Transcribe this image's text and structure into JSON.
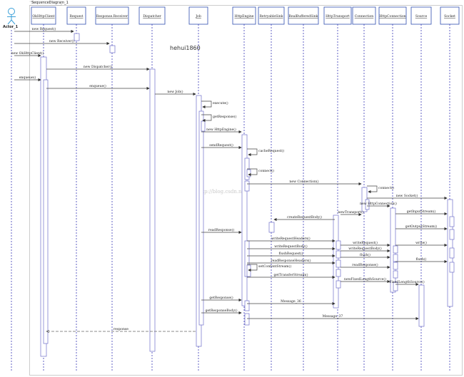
{
  "diagram": {
    "frame_title": "SequenceDiagram_1",
    "watermark": "hehui1860",
    "watermark2": "http://blog.csdn.net",
    "actor": "Actor_1",
    "participants": [
      {
        "id": "okhttpclient",
        "label": "OkHttpClient"
      },
      {
        "id": "request",
        "label": "Request"
      },
      {
        "id": "response_receiver",
        "label": "Response.Receiver"
      },
      {
        "id": "dispatcher",
        "label": "Dispatcher"
      },
      {
        "id": "job",
        "label": "Job"
      },
      {
        "id": "httpengine",
        "label": "HttpEngine"
      },
      {
        "id": "retryable_sink",
        "label": "RetryableSink"
      },
      {
        "id": "real_buffered_sink",
        "label": "RealBufferedSink"
      },
      {
        "id": "httptransport",
        "label": "HttpTransport"
      },
      {
        "id": "connection",
        "label": "Connection"
      },
      {
        "id": "httpconnection",
        "label": "HttpConnection"
      },
      {
        "id": "source",
        "label": "Source"
      },
      {
        "id": "socket",
        "label": "Socket"
      }
    ],
    "messages": [
      {
        "from": "actor",
        "to": "request",
        "label": "new Request()",
        "kind": "call"
      },
      {
        "from": "actor",
        "to": "response_receiver",
        "label": "new Receiver()",
        "kind": "call"
      },
      {
        "from": "actor",
        "to": "okhttpclient",
        "label": "new OkHttpClient()",
        "kind": "call"
      },
      {
        "from": "okhttpclient",
        "to": "dispatcher",
        "label": "new Dispatcher()",
        "kind": "call"
      },
      {
        "from": "actor",
        "to": "okhttpclient",
        "label": "enqueue()",
        "kind": "call"
      },
      {
        "from": "okhttpclient",
        "to": "dispatcher",
        "label": "enqueue()",
        "kind": "call"
      },
      {
        "from": "dispatcher",
        "to": "job",
        "label": "new Job()",
        "kind": "call"
      },
      {
        "from": "job",
        "to": "job",
        "label": "execute()",
        "kind": "self"
      },
      {
        "from": "job",
        "to": "job",
        "label": "getResponse()",
        "kind": "self"
      },
      {
        "from": "job",
        "to": "httpengine",
        "label": "new HttpEngine()",
        "kind": "call"
      },
      {
        "from": "job",
        "to": "httpengine",
        "label": "sendRequest()",
        "kind": "call"
      },
      {
        "from": "httpengine",
        "to": "httpengine",
        "label": "cacheRequest()",
        "kind": "self"
      },
      {
        "from": "httpengine",
        "to": "httpengine",
        "label": "connect()",
        "kind": "self"
      },
      {
        "from": "httpengine",
        "to": "connection",
        "label": "new Connection()",
        "kind": "call"
      },
      {
        "from": "connection",
        "to": "connection",
        "label": "connect()",
        "kind": "self"
      },
      {
        "from": "connection",
        "to": "socket",
        "label": "new Socket()",
        "kind": "call"
      },
      {
        "from": "connection",
        "to": "httpconnection",
        "label": "new HttpConnection()",
        "kind": "call"
      },
      {
        "from": "httpconnection",
        "to": "socket",
        "label": "getInputStream()",
        "kind": "call"
      },
      {
        "from": "httpconnection",
        "to": "socket",
        "label": "getOutputStream()",
        "kind": "call"
      },
      {
        "from": "httptransport",
        "to": "connection",
        "label": "newTransport()",
        "kind": "call"
      },
      {
        "from": "httptransport",
        "to": "retryable_sink",
        "label": "createRequestBody()",
        "kind": "call"
      },
      {
        "from": "job",
        "to": "httpengine",
        "label": "readResponse()",
        "kind": "call"
      },
      {
        "from": "httpengine",
        "to": "httptransport",
        "label": "writeRequestHeaders()",
        "kind": "call"
      },
      {
        "from": "httptransport",
        "to": "httpconnection",
        "label": "writeRequest()",
        "kind": "call"
      },
      {
        "from": "httpconnection",
        "to": "socket",
        "label": "write()",
        "kind": "call"
      },
      {
        "from": "httpengine",
        "to": "httptransport",
        "label": "writeRequestBody()",
        "kind": "call"
      },
      {
        "from": "httptransport",
        "to": "httpconnection",
        "label": "writeRequestBody()",
        "kind": "call"
      },
      {
        "from": "httpengine",
        "to": "httptransport",
        "label": "flushRequest()",
        "kind": "call"
      },
      {
        "from": "httptransport",
        "to": "httpconnection",
        "label": "flush()",
        "kind": "call"
      },
      {
        "from": "httpconnection",
        "to": "socket",
        "label": "flush()",
        "kind": "call"
      },
      {
        "from": "httpengine",
        "to": "httptransport",
        "label": "readResponseHeaders()",
        "kind": "call"
      },
      {
        "from": "httptransport",
        "to": "httpconnection",
        "label": "readResponse()",
        "kind": "call"
      },
      {
        "from": "httpengine",
        "to": "httpengine",
        "label": "setContentStream()",
        "kind": "self"
      },
      {
        "from": "httpengine",
        "to": "httptransport",
        "label": "getTransferStream()",
        "kind": "call"
      },
      {
        "from": "httptransport",
        "to": "httpconnection",
        "label": "newFixedLengthSource()",
        "kind": "call"
      },
      {
        "from": "httpconnection",
        "to": "source",
        "label": "FixedLengthSource()",
        "kind": "call"
      },
      {
        "from": "job",
        "to": "httpengine",
        "label": "getResponse()",
        "kind": "call"
      },
      {
        "from": "httpengine",
        "to": "httptransport",
        "label": "Message_36",
        "kind": "call"
      },
      {
        "from": "job",
        "to": "httpengine",
        "label": "getResponseBody()",
        "kind": "call"
      },
      {
        "from": "httpengine",
        "to": "source",
        "label": "Message_37",
        "kind": "call"
      },
      {
        "from": "job",
        "to": "okhttpclient",
        "label": "response",
        "kind": "return"
      }
    ]
  }
}
